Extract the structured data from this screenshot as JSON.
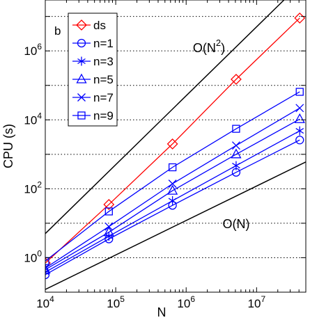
{
  "chart_data": {
    "type": "line",
    "panel_label": "b",
    "xlabel": "N",
    "ylabel": "CPU (s)",
    "xscale": "log",
    "yscale": "log",
    "xlim": [
      10000,
      50000000
    ],
    "ylim": [
      0.1,
      30000000
    ],
    "grid": "horizontal dotted at major y ticks",
    "legend_position": "top-left",
    "x_tick_labels": [
      {
        "value": 10000,
        "base": "10",
        "exp": "4"
      },
      {
        "value": 100000,
        "base": "10",
        "exp": "5"
      },
      {
        "value": 1000000,
        "base": "10",
        "exp": "6"
      },
      {
        "value": 10000000,
        "base": "10",
        "exp": "7"
      }
    ],
    "y_tick_labels": [
      {
        "value": 1,
        "base": "10",
        "exp": "0"
      },
      {
        "value": 100,
        "base": "10",
        "exp": "2"
      },
      {
        "value": 10000,
        "base": "10",
        "exp": "4"
      },
      {
        "value": 1000000,
        "base": "10",
        "exp": "6"
      }
    ],
    "x": [
      10000,
      80000,
      640000,
      5120000,
      40960000
    ],
    "series": [
      {
        "name": "ds",
        "color": "#ff0000",
        "marker": "diamond",
        "values": [
          0.7,
          35,
          2000,
          150000,
          9000000
        ]
      },
      {
        "name": "n=1",
        "color": "#0000ff",
        "marker": "circle",
        "values": [
          0.32,
          3.5,
          33,
          300,
          2600
        ]
      },
      {
        "name": "n=3",
        "color": "#0000ff",
        "marker": "asterisk",
        "values": [
          0.38,
          4.2,
          45,
          470,
          4800
        ]
      },
      {
        "name": "n=5",
        "color": "#0000ff",
        "marker": "triangle",
        "values": [
          0.45,
          5.5,
          88,
          1000,
          10500
        ]
      },
      {
        "name": "n=7",
        "color": "#0000ff",
        "marker": "x",
        "values": [
          0.5,
          8,
          140,
          1800,
          22000
        ]
      },
      {
        "name": "n=9",
        "color": "#0000ff",
        "marker": "square",
        "values": [
          0.8,
          22,
          420,
          5500,
          65000
        ]
      }
    ],
    "reference_lines": [
      {
        "label": "O(N",
        "label_sup": "2",
        "label_tail": ")",
        "color": "#000000",
        "points": [
          [
            10000,
            5
          ],
          [
            50000000,
            125000000
          ]
        ]
      },
      {
        "label": "O(N)",
        "color": "#000000",
        "points": [
          [
            10000,
            0.12
          ],
          [
            50000000,
            600
          ]
        ]
      }
    ]
  }
}
